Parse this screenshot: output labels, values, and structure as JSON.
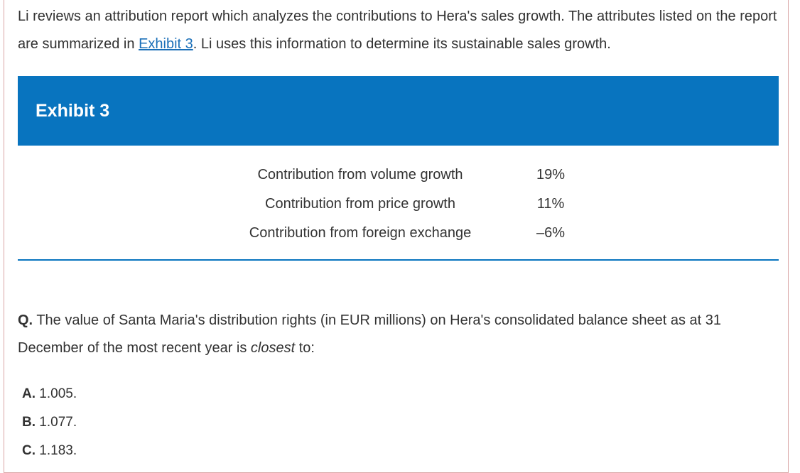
{
  "intro": {
    "part1": "Li reviews an attribution report which analyzes the contributions to Hera's sales growth. The attributes listed on the report are summarized in ",
    "link": "Exhibit 3",
    "part2": ". Li uses this information to determine its sustainable sales growth."
  },
  "exhibit": {
    "title": "Exhibit 3",
    "rows": [
      {
        "label": "Contribution from volume growth",
        "value": "19%"
      },
      {
        "label": "Contribution from price growth",
        "value": "11%"
      },
      {
        "label": "Contribution from foreign exchange",
        "value": "–6%"
      }
    ]
  },
  "question": {
    "prefix": "Q.",
    "text_before": " The value of Santa Maria's distribution rights (in EUR millions) on Hera's consolidated balance sheet as at 31 December of the most recent year is ",
    "emphasis": "closest",
    "text_after": " to:"
  },
  "options": [
    {
      "letter": "A.",
      "text": " 1.005."
    },
    {
      "letter": "B.",
      "text": " 1.077."
    },
    {
      "letter": "C.",
      "text": " 1.183."
    }
  ],
  "colors": {
    "accent": "#0874bf",
    "link": "#1a6fb8",
    "text": "#333333",
    "frame_border": "#d9a6a6"
  }
}
